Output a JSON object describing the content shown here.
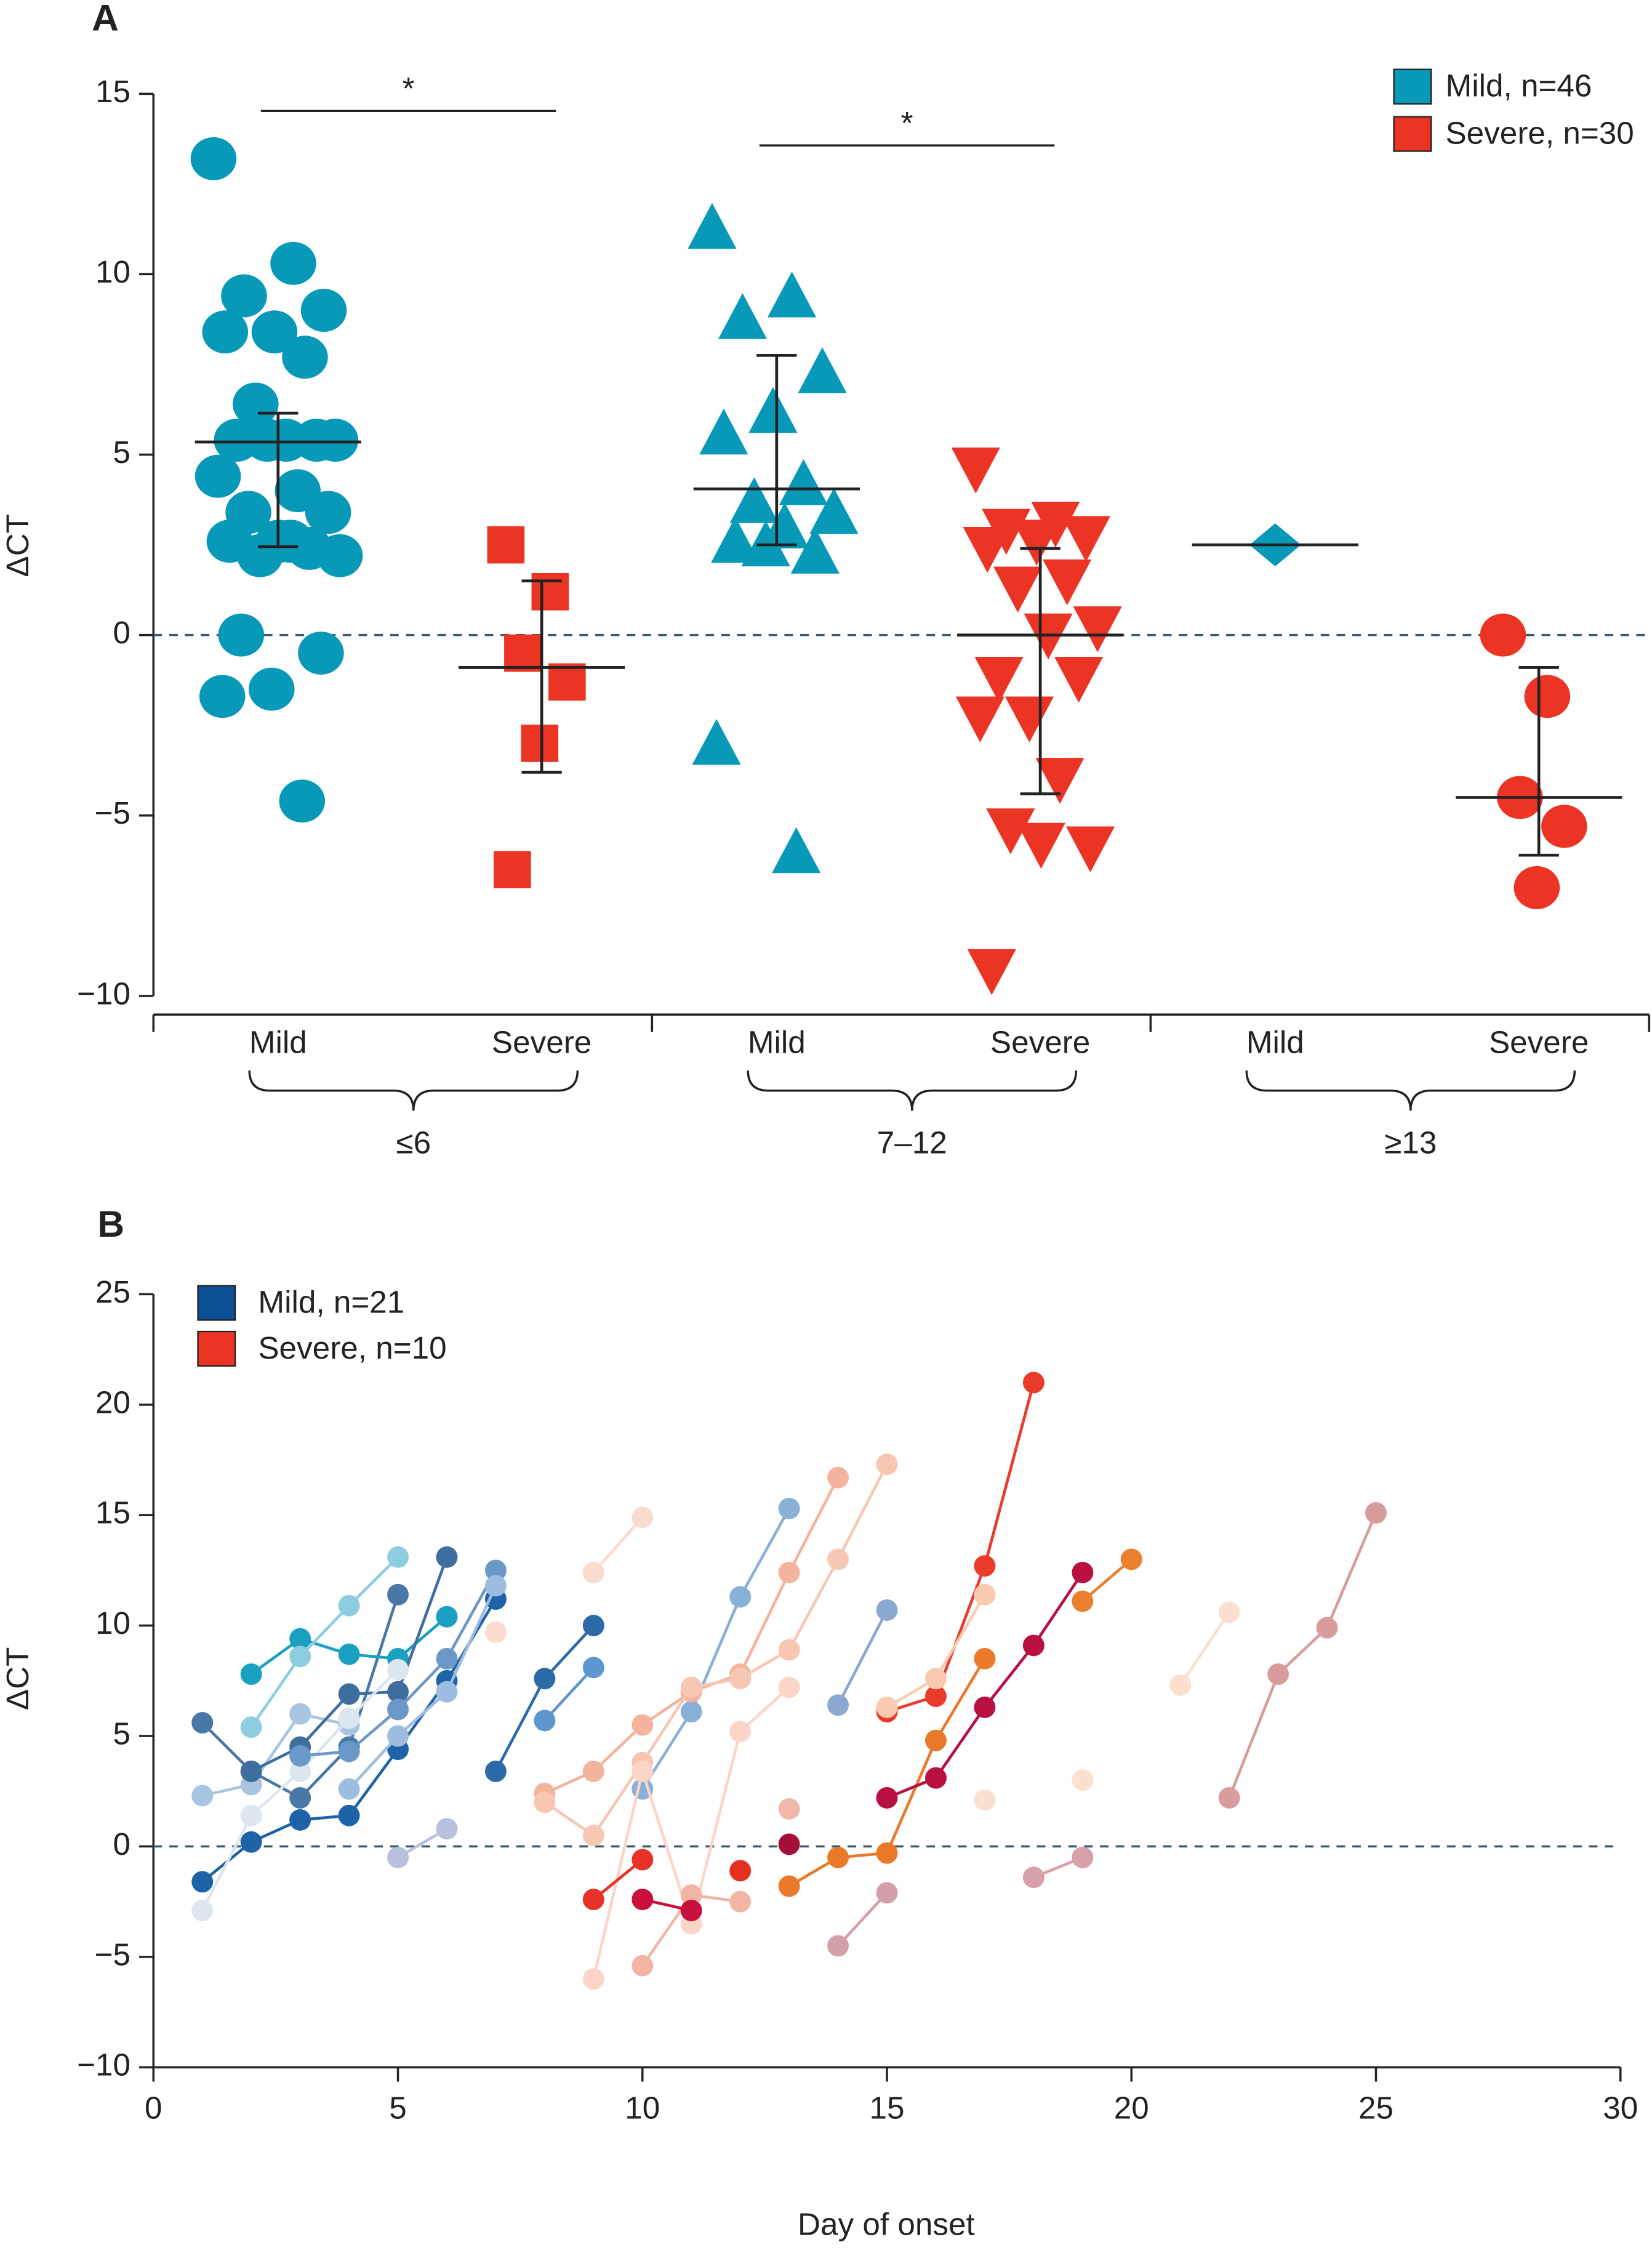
{
  "chart_data": [
    {
      "type": "strip",
      "title": "A",
      "ylabel": "ΔCT",
      "ylim": [
        -10,
        15
      ],
      "yticks": [
        {
          "value": -10,
          "label": "−10"
        },
        {
          "value": -5,
          "label": "−5"
        },
        0,
        5,
        10,
        15
      ],
      "categories": [
        "Mild",
        "Severe",
        "Mild",
        "Severe",
        "Mild",
        "Severe"
      ],
      "groups": [
        "≤6",
        "7–12",
        "≥13"
      ],
      "markers": [
        "circle",
        "square",
        "triangle",
        "triangle-down",
        "diamond",
        "circle"
      ],
      "legend": [
        {
          "name": "Mild, n=46",
          "color": "#0899b8"
        },
        {
          "name": "Severe, n=30",
          "color": "#ec3424"
        }
      ],
      "points": [
        [
          13.2,
          10.3,
          9.4,
          9.0,
          8.4,
          8.4,
          7.7,
          6.4,
          5.4,
          5.4,
          5.4,
          5.4,
          5.4,
          4.4,
          4.0,
          3.4,
          3.4,
          2.6,
          2.6,
          2.4,
          2.2,
          2.2,
          2.6,
          0,
          -0.5,
          -1.5,
          -1.7,
          -4.6
        ],
        [
          2.5,
          1.2,
          -0.5,
          -1.3,
          -3.0,
          -6.5
        ],
        [
          11.3,
          9.4,
          8.8,
          7.3,
          6.2,
          5.6,
          4.2,
          3.7,
          3.4,
          3.0,
          2.6,
          2.3,
          2.5,
          -3.0,
          -6.0
        ],
        [
          4.6,
          3.1,
          2.9,
          2.7,
          2.6,
          2.4,
          1.5,
          1.3,
          0.2,
          0,
          -1.2,
          -1.2,
          -2.3,
          -2.3,
          -4.0,
          -5.4,
          -5.9,
          -5.8,
          -9.3
        ],
        [
          2.5
        ],
        [
          0,
          -1.7,
          -4.5,
          -5.3,
          -7.0
        ]
      ],
      "centers": [
        5.35,
        -0.9,
        4.05,
        0,
        2.5,
        -4.5
      ],
      "ranges": [
        [
          2.45,
          6.15
        ],
        [
          -3.8,
          1.5
        ],
        [
          2.5,
          7.75
        ],
        [
          -4.4,
          2.4
        ],
        null,
        [
          -6.1,
          -0.9
        ]
      ],
      "annotations": [
        "*",
        "*"
      ],
      "reference_line": 0
    },
    {
      "type": "line",
      "title": "B",
      "ylabel": "ΔCT",
      "xlabel": "Day of onset",
      "xlim": [
        0,
        30
      ],
      "xticks": [
        0,
        5,
        10,
        15,
        20,
        25,
        30
      ],
      "ylim": [
        -10,
        25
      ],
      "yticks": [
        {
          "value": -10,
          "label": "−10"
        },
        {
          "value": -5,
          "label": "−5"
        },
        0,
        5,
        10,
        15,
        20,
        25
      ],
      "legend": [
        {
          "name": "Mild, n=21",
          "color": "#0b4f94"
        },
        {
          "name": "Severe, n=10",
          "color": "#ec3424"
        }
      ],
      "reference_line": 0,
      "lines": [
        {
          "color": "#4a78a6",
          "x": [
            1,
            2,
            3,
            4,
            5
          ],
          "y": [
            5.6,
            3.4,
            2.2,
            4.5,
            11.4
          ]
        },
        {
          "color": "#1aa0c0",
          "x": [
            2,
            3,
            4,
            5,
            6
          ],
          "y": [
            7.8,
            9.4,
            8.7,
            8.5,
            10.4
          ]
        },
        {
          "color": "#8ecde0",
          "x": [
            2,
            3,
            4,
            5
          ],
          "y": [
            5.4,
            8.6,
            10.9,
            13.1
          ]
        },
        {
          "color": "#1e63a8",
          "x": [
            1,
            2,
            3,
            4,
            5,
            6,
            7
          ],
          "y": [
            -1.6,
            0.2,
            1.2,
            1.4,
            4.4,
            7.5,
            11.2
          ]
        },
        {
          "color": "#a8c4e0",
          "x": [
            1,
            2,
            3,
            4
          ],
          "y": [
            2.3,
            2.8,
            6.0,
            5.5
          ]
        },
        {
          "color": "#3e6e9e",
          "x": [
            2,
            3,
            4,
            5,
            6
          ],
          "y": [
            3.4,
            4.5,
            6.9,
            7.0,
            13.1
          ]
        },
        {
          "color": "#dbe6f0",
          "x": [
            1,
            2,
            3,
            4,
            5
          ],
          "y": [
            -2.9,
            1.4,
            3.4,
            5.8,
            8.0
          ]
        },
        {
          "color": "#6a98c8",
          "x": [
            3,
            4,
            5,
            6,
            7
          ],
          "y": [
            4.1,
            4.3,
            6.2,
            8.5,
            12.5
          ]
        },
        {
          "color": "#9dbde0",
          "x": [
            4,
            5,
            6,
            7
          ],
          "y": [
            2.6,
            5.0,
            7.0,
            11.8
          ]
        },
        {
          "color": "#b8c0de",
          "x": [
            5,
            6
          ],
          "y": [
            -0.5,
            0.8
          ]
        },
        {
          "color": "#2d6aa8",
          "x": [
            7,
            8,
            9
          ],
          "y": [
            3.4,
            7.6,
            10.0
          ]
        },
        {
          "color": "#5e96d0",
          "x": [
            8,
            9
          ],
          "y": [
            5.7,
            8.1
          ]
        },
        {
          "color": "#89b0d8",
          "x": [
            10,
            11,
            12,
            13
          ],
          "y": [
            2.6,
            6.1,
            11.3,
            15.3
          ]
        },
        {
          "color": "#8aa8d0",
          "x": [
            14,
            15
          ],
          "y": [
            6.4,
            10.7
          ]
        },
        {
          "color": "#f4b39c",
          "x": [
            8,
            9,
            10,
            11,
            12,
            13,
            14
          ],
          "y": [
            2.4,
            3.4,
            5.5,
            7.0,
            7.8,
            12.4,
            16.7
          ]
        },
        {
          "color": "#f7c7b3",
          "x": [
            8,
            9,
            10,
            11,
            12,
            13,
            14,
            15
          ],
          "y": [
            2.0,
            0.5,
            3.8,
            7.2,
            7.6,
            8.9,
            13.0,
            17.3
          ]
        },
        {
          "color": "#fadbd0",
          "x": [
            9,
            10
          ],
          "y": [
            12.4,
            14.9
          ]
        },
        {
          "color": "#fbd6c8",
          "x": [
            9,
            10,
            11,
            12,
            13
          ],
          "y": [
            -6.0,
            3.4,
            -3.5,
            5.2,
            7.2
          ]
        },
        {
          "color": "#f2b5a3",
          "x": [
            10,
            11,
            12
          ],
          "y": [
            -5.4,
            -2.2,
            -2.5
          ]
        },
        {
          "color": "#e83228",
          "x": [
            9,
            10
          ],
          "y": [
            -2.4,
            -0.6
          ]
        },
        {
          "color": "#c8103c",
          "x": [
            10,
            11
          ],
          "y": [
            -2.4,
            -2.9
          ]
        },
        {
          "color": "#e53020",
          "x": [
            12
          ],
          "y": [
            -1.1
          ]
        },
        {
          "color": "#a40f3a",
          "x": [
            13
          ],
          "y": [
            0.1
          ]
        },
        {
          "color": "#ea7a2a",
          "x": [
            13,
            14,
            15,
            16,
            17
          ],
          "y": [
            -1.8,
            -0.5,
            -0.3,
            4.8,
            8.5
          ]
        },
        {
          "color": "#ea3a2a",
          "x": [
            15,
            16,
            17,
            18
          ],
          "y": [
            6.1,
            6.8,
            12.7,
            21.0
          ]
        },
        {
          "color": "#b81040",
          "x": [
            15,
            16,
            17,
            18,
            19
          ],
          "y": [
            2.2,
            3.1,
            6.3,
            9.1,
            12.4
          ]
        },
        {
          "color": "#eb8030",
          "x": [
            19,
            20
          ],
          "y": [
            11.1,
            13.0
          ]
        },
        {
          "color": "#d4a0a8",
          "x": [
            14,
            15
          ],
          "y": [
            -4.5,
            -2.1
          ]
        },
        {
          "color": "#f9c9b0",
          "x": [
            15,
            16,
            17
          ],
          "y": [
            6.3,
            7.6,
            11.4
          ]
        },
        {
          "color": "#fbe0d0",
          "x": [
            21,
            22
          ],
          "y": [
            7.3,
            10.6
          ]
        },
        {
          "color": "#fbe0d0",
          "x": [
            17
          ],
          "y": [
            2.1
          ]
        },
        {
          "color": "#fbe0d0",
          "x": [
            19
          ],
          "y": [
            3.0
          ]
        },
        {
          "color": "#d8a0a8",
          "x": [
            18,
            19
          ],
          "y": [
            -1.4,
            -0.5
          ]
        },
        {
          "color": "#d89c9c",
          "x": [
            22,
            23,
            24,
            25
          ],
          "y": [
            2.2,
            7.8,
            9.9,
            15.1
          ]
        },
        {
          "color": "#f0b8a8",
          "x": [
            13
          ],
          "y": [
            1.7
          ]
        },
        {
          "color": "#fadbd0",
          "x": [
            7
          ],
          "y": [
            9.7
          ]
        }
      ]
    }
  ]
}
